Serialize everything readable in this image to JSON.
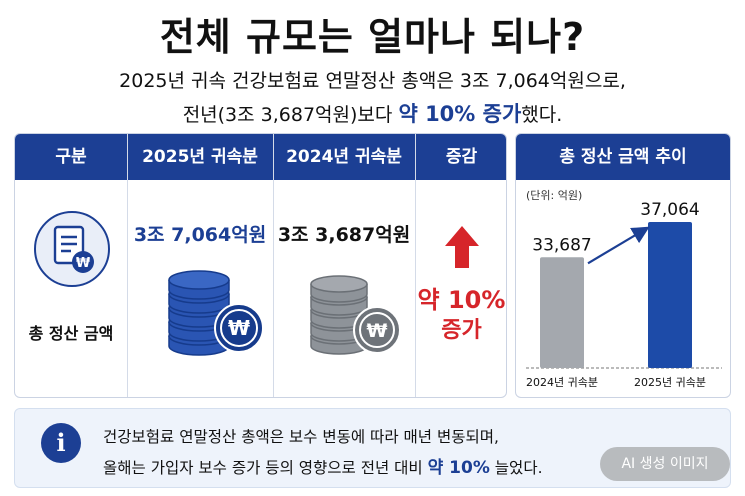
{
  "title": "전체 규모는 얼마나 되나?",
  "subtitle": {
    "line1": "2025년 귀속 건강보험료 연말정산 총액은 3조 7,064억원으로,",
    "line2_pre": "전년(3조 3,687억원)보다 ",
    "line2_accent": "약 10% 증가",
    "line2_post": "했다."
  },
  "table": {
    "headers": [
      "구분",
      "2025년 귀속분",
      "2024년 귀속분",
      "증감"
    ],
    "row_label": "총 정산 금액",
    "value_2025": "3조 7,064억원",
    "value_2024": "3조 3,687억원",
    "change_line1": "약 10%",
    "change_line2": "증가",
    "icons": [
      "document-won-icon",
      "coin-stack-blue-icon",
      "coin-stack-gray-icon",
      "up-arrow-icon"
    ]
  },
  "chart_panel": {
    "title": "총 정산 금액 추이",
    "unit": "(단위: 억원)"
  },
  "chart_data": {
    "type": "bar",
    "categories": [
      "2024년 귀속분",
      "2025년 귀속분"
    ],
    "values": [
      33687,
      37064
    ],
    "value_labels": [
      "33,687",
      "37,064"
    ],
    "colors": [
      "#a4a8ae",
      "#1d4ba8"
    ]
  },
  "info": {
    "line1": "건강보험료 연말정산 총액은 보수 변동에 따라 매년 변동되며,",
    "line2_pre": "올해는 가입자 보수 증가 등의 영향으로 전년 대비 ",
    "line2_accent": "약 10%",
    "line2_post": " 늘었다."
  },
  "badge": "AI 생성 이미지",
  "colors": {
    "navy": "#1c3f94",
    "red": "#d6252a",
    "gray": "#a4a8ae"
  }
}
